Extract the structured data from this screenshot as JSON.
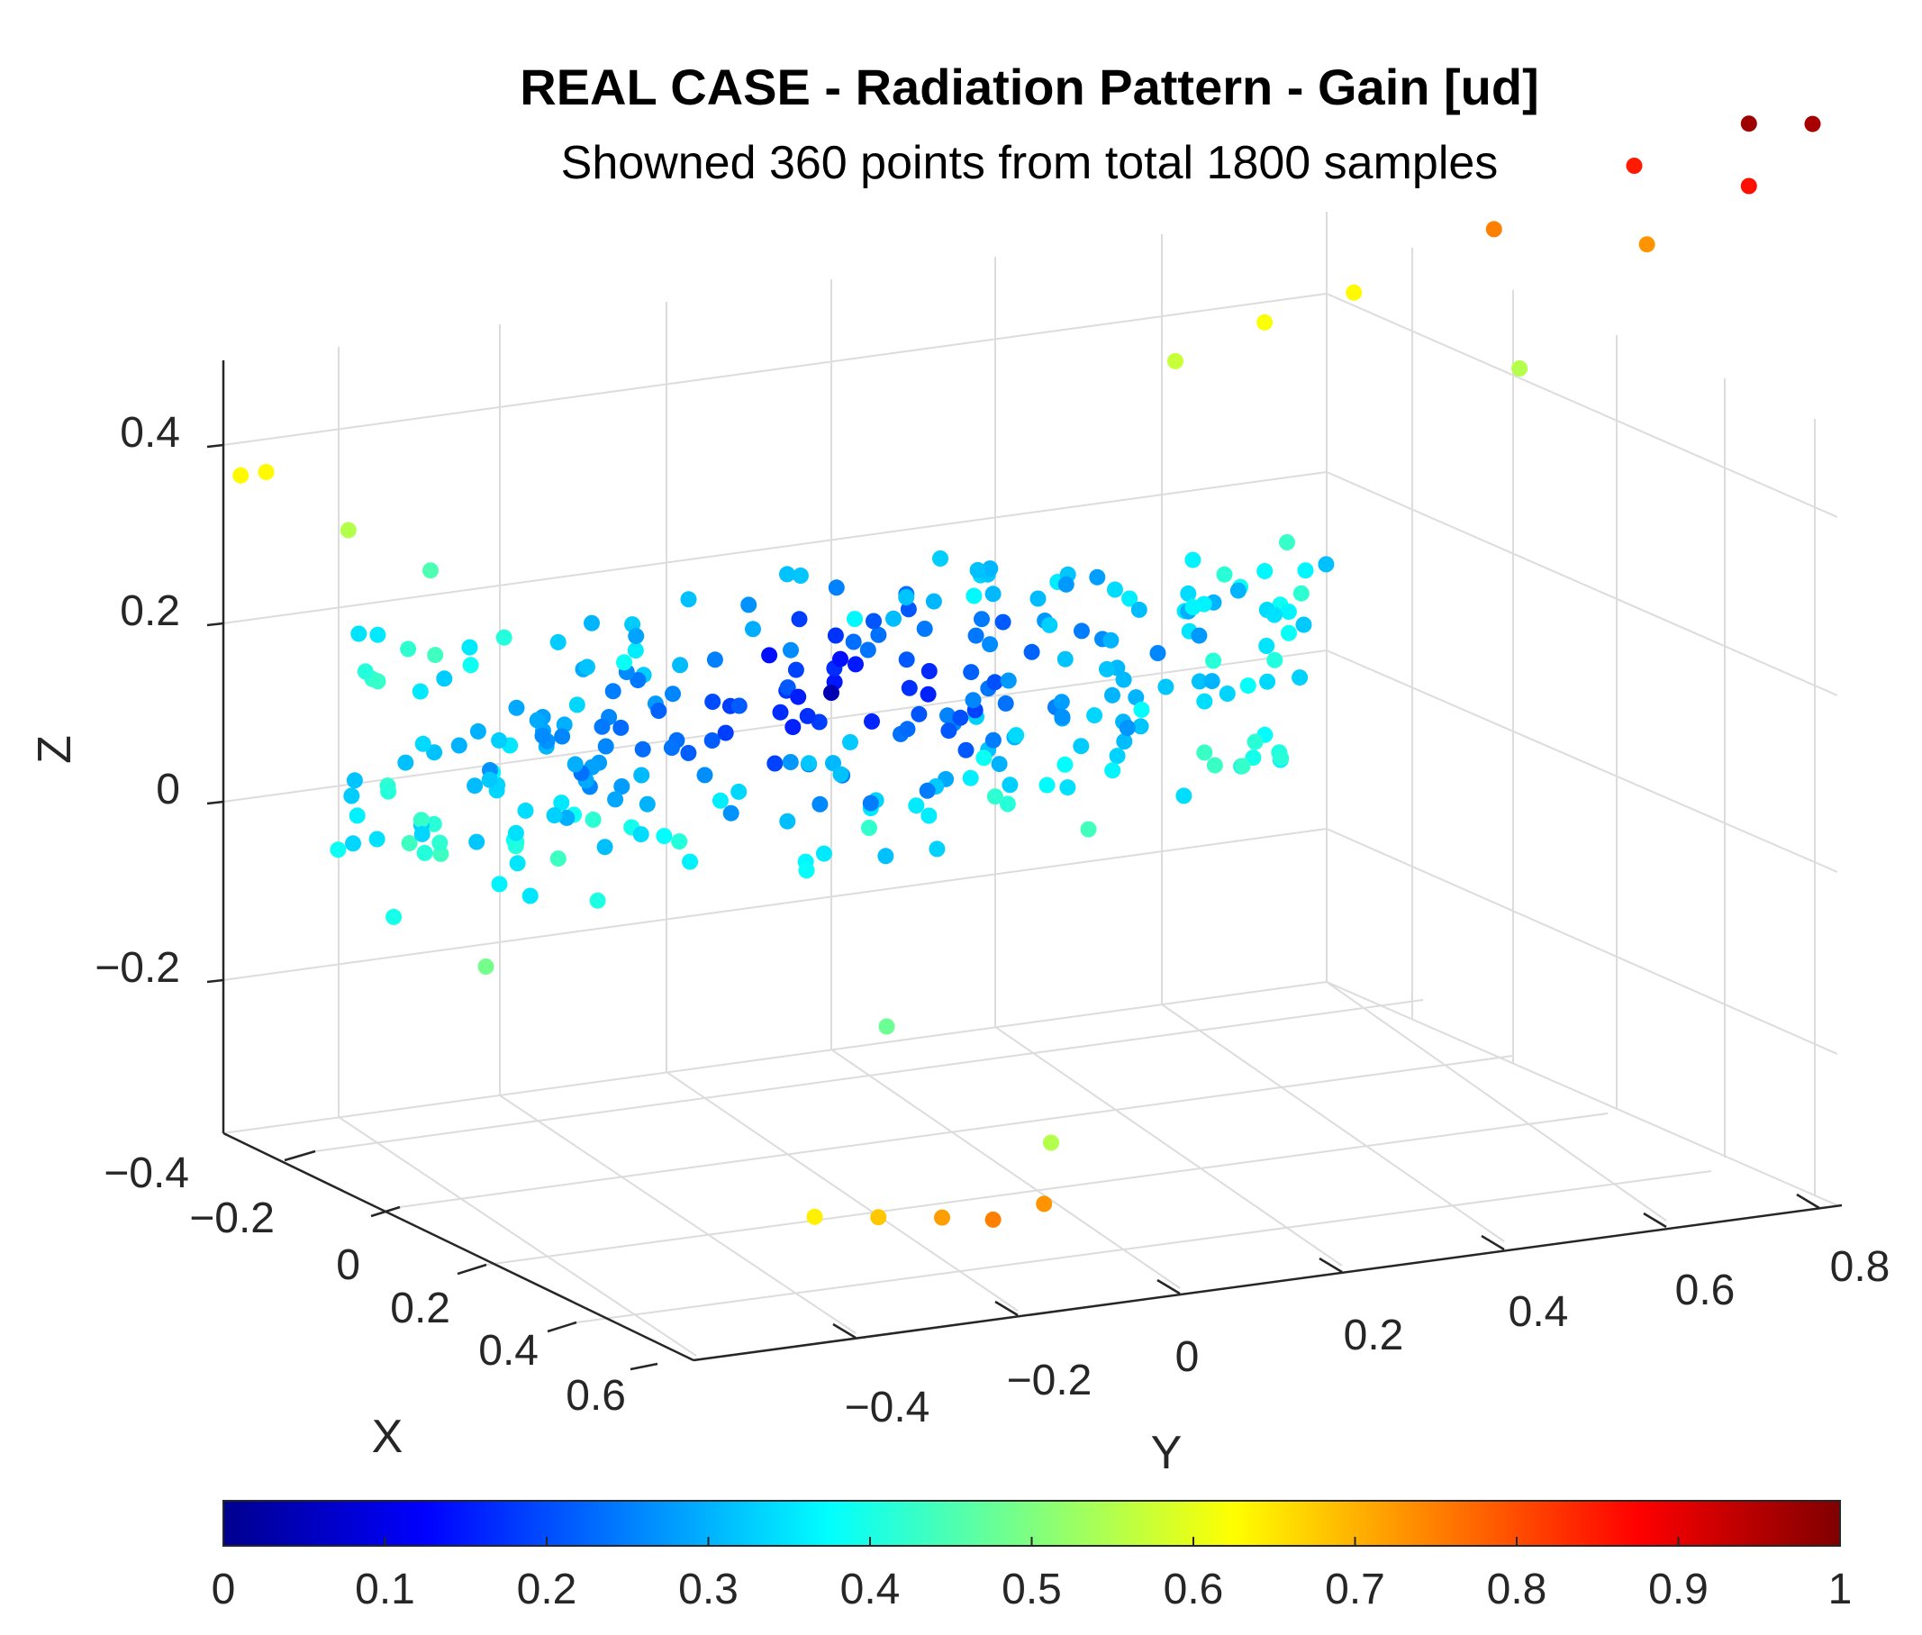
{
  "chart_data": {
    "type": "scatter3d",
    "title": "REAL CASE - Radiation Pattern - Gain [ud]",
    "subtitle": "Showned 360 points from total 1800 samples",
    "xlabel": "X",
    "ylabel": "Y",
    "zlabel": "Z",
    "xlim": [
      -0.4,
      0.6
    ],
    "ylim": [
      -0.5,
      0.8
    ],
    "zlim": [
      -0.4,
      0.5
    ],
    "x_ticks": [
      "−0.4",
      "−0.2",
      "0",
      "0.2",
      "0.4",
      "0.6"
    ],
    "y_ticks": [
      "−0.4",
      "−0.2",
      "0",
      "0.2",
      "0.4",
      "0.6",
      "0.8"
    ],
    "z_ticks": [
      "−0.2",
      "0",
      "0.2",
      "0.4"
    ],
    "colorbar": {
      "colormap": "jet",
      "limits": [
        0,
        1
      ],
      "ticks": [
        "0",
        "0.1",
        "0.2",
        "0.3",
        "0.4",
        "0.5",
        "0.6",
        "0.7",
        "0.8",
        "0.9",
        "1"
      ]
    },
    "grid": true,
    "visible_points": [
      {
        "x": 0.0,
        "y": 0.72,
        "z": 0.5,
        "gain": 0.97
      },
      {
        "x": 0.0,
        "y": 0.77,
        "z": 0.49,
        "gain": 0.96
      },
      {
        "x": 0.0,
        "y": 0.63,
        "z": 0.47,
        "gain": 0.85
      },
      {
        "x": 0.0,
        "y": 0.72,
        "z": 0.43,
        "gain": 0.86
      },
      {
        "x": 0.0,
        "y": 0.52,
        "z": 0.42,
        "gain": 0.75
      },
      {
        "x": 0.0,
        "y": 0.64,
        "z": 0.38,
        "gain": 0.73
      },
      {
        "x": 0.0,
        "y": 0.41,
        "z": 0.37,
        "gain": 0.63
      },
      {
        "x": 0.0,
        "y": 0.34,
        "z": 0.35,
        "gain": 0.62
      },
      {
        "x": 0.0,
        "y": 0.27,
        "z": 0.32,
        "gain": 0.57
      },
      {
        "x": 0.0,
        "y": 0.54,
        "z": 0.26,
        "gain": 0.55
      },
      {
        "x": -0.3,
        "y": -0.42,
        "z": 0.25,
        "gain": 0.63
      },
      {
        "x": -0.3,
        "y": -0.4,
        "z": 0.25,
        "gain": 0.63
      },
      {
        "x": -0.2,
        "y": -0.35,
        "z": 0.2,
        "gain": 0.55
      },
      {
        "x": -0.1,
        "y": -0.3,
        "z": 0.17,
        "gain": 0.45
      },
      {
        "x": 0.0,
        "y": 0.0,
        "z": 0.0,
        "gain": 0.05
      },
      {
        "x": 0.2,
        "y": -0.3,
        "z": -0.2,
        "gain": 0.49
      },
      {
        "x": 0.3,
        "y": 0.0,
        "z": -0.3,
        "gain": 0.48
      },
      {
        "x": 0.5,
        "y": 0.1,
        "z": -0.4,
        "gain": 0.55
      },
      {
        "x": 0.6,
        "y": -0.1,
        "z": -0.42,
        "gain": 0.64
      },
      {
        "x": 0.6,
        "y": -0.05,
        "z": -0.43,
        "gain": 0.68
      },
      {
        "x": 0.6,
        "y": 0.0,
        "z": -0.44,
        "gain": 0.72
      },
      {
        "x": 0.6,
        "y": 0.04,
        "z": -0.45,
        "gain": 0.75
      },
      {
        "x": 0.6,
        "y": 0.08,
        "z": -0.44,
        "gain": 0.73
      }
    ]
  }
}
